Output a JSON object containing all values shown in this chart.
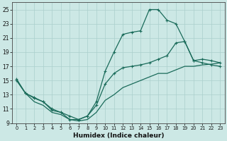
{
  "xlabel": "Humidex (Indice chaleur)",
  "background_color": "#cce8e5",
  "grid_color": "#aacfcc",
  "line_color": "#1a6b5a",
  "xlim": [
    -0.5,
    23.5
  ],
  "ylim": [
    9,
    26
  ],
  "xticks": [
    0,
    1,
    2,
    3,
    4,
    5,
    6,
    7,
    8,
    9,
    10,
    11,
    12,
    13,
    14,
    15,
    16,
    17,
    18,
    19,
    20,
    21,
    22,
    23
  ],
  "yticks": [
    9,
    11,
    13,
    15,
    17,
    19,
    21,
    23,
    25
  ],
  "curve1_x": [
    0,
    1,
    2,
    3,
    4,
    5,
    6,
    7,
    8,
    9,
    10,
    11,
    12,
    13,
    14,
    15,
    16,
    17,
    18,
    19,
    20,
    21,
    22,
    23
  ],
  "curve1_y": [
    15.0,
    13.2,
    12.0,
    11.5,
    10.5,
    10.2,
    9.5,
    9.3,
    9.5,
    10.5,
    12.2,
    13.0,
    14.0,
    14.5,
    15.0,
    15.5,
    16.0,
    16.0,
    16.5,
    17.0,
    17.0,
    17.2,
    17.3,
    17.5
  ],
  "curve2_x": [
    0,
    1,
    2,
    3,
    4,
    5,
    6,
    7,
    8,
    9,
    10,
    11,
    12,
    13,
    14,
    15,
    16,
    17,
    18,
    19,
    20,
    21,
    22,
    23
  ],
  "curve2_y": [
    15.2,
    13.2,
    12.5,
    12.0,
    11.0,
    10.5,
    10.0,
    9.5,
    10.0,
    11.5,
    14.5,
    16.0,
    16.8,
    17.0,
    17.2,
    17.5,
    18.0,
    18.5,
    20.3,
    20.5,
    17.8,
    18.0,
    17.8,
    17.5
  ],
  "curve3_x": [
    0,
    1,
    2,
    3,
    4,
    5,
    6,
    7,
    8,
    9,
    10,
    11,
    12,
    13,
    14,
    15,
    16,
    17,
    18,
    19,
    20,
    21,
    22,
    23
  ],
  "curve3_y": [
    15.0,
    13.2,
    12.6,
    12.0,
    10.8,
    10.5,
    9.5,
    9.5,
    10.0,
    12.0,
    16.3,
    19.0,
    21.5,
    21.8,
    22.0,
    25.0,
    25.0,
    23.5,
    23.0,
    20.5,
    17.8,
    17.5,
    17.2,
    17.0
  ]
}
